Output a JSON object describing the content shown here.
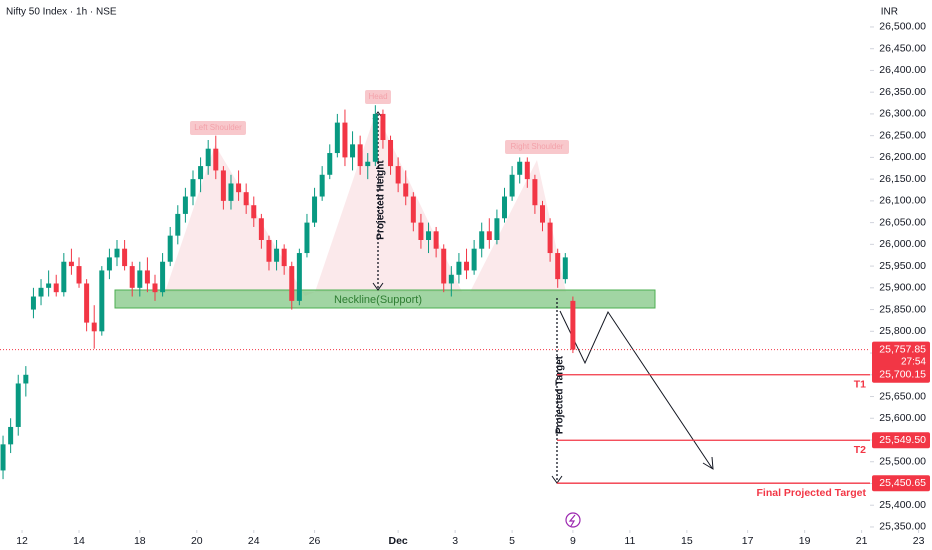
{
  "chart_data": {
    "type": "candlestick",
    "title": "Nifty 50 Index · 1h · NSE",
    "currency": "INR",
    "up_color": "#089981",
    "down_color": "#f23645",
    "candles": [
      [
        25480,
        25560,
        25460,
        25540
      ],
      [
        25540,
        25600,
        25520,
        25580
      ],
      [
        25580,
        25700,
        25560,
        25680
      ],
      [
        25680,
        25720,
        25650,
        25700
      ],
      [
        25850,
        25900,
        25830,
        25880
      ],
      [
        25880,
        25920,
        25860,
        25900
      ],
      [
        25900,
        25940,
        25880,
        25910
      ],
      [
        25910,
        25930,
        25880,
        25890
      ],
      [
        25890,
        25980,
        25880,
        25960
      ],
      [
        25960,
        25990,
        25930,
        25950
      ],
      [
        25950,
        25970,
        25900,
        25910
      ],
      [
        25910,
        25920,
        25800,
        25820
      ],
      [
        25820,
        25860,
        25760,
        25800
      ],
      [
        25800,
        25950,
        25790,
        25940
      ],
      [
        25940,
        25990,
        25920,
        25970
      ],
      [
        25970,
        26010,
        25950,
        25990
      ],
      [
        25990,
        26010,
        25940,
        25950
      ],
      [
        25950,
        25960,
        25880,
        25900
      ],
      [
        25900,
        25960,
        25880,
        25940
      ],
      [
        25940,
        25970,
        25890,
        25910
      ],
      [
        25910,
        25930,
        25870,
        25890
      ],
      [
        25890,
        25980,
        25880,
        25960
      ],
      [
        25960,
        26040,
        25950,
        26020
      ],
      [
        26020,
        26090,
        26000,
        26070
      ],
      [
        26070,
        26130,
        26050,
        26110
      ],
      [
        26110,
        26170,
        26090,
        26150
      ],
      [
        26150,
        26200,
        26120,
        26180
      ],
      [
        26180,
        26240,
        26160,
        26220
      ],
      [
        26220,
        26250,
        26150,
        26170
      ],
      [
        26170,
        26180,
        26080,
        26100
      ],
      [
        26100,
        26160,
        26080,
        26140
      ],
      [
        26140,
        26170,
        26100,
        26120
      ],
      [
        26120,
        26140,
        26070,
        26090
      ],
      [
        26090,
        26110,
        26040,
        26060
      ],
      [
        26060,
        26070,
        25990,
        26010
      ],
      [
        26010,
        26020,
        25940,
        25960
      ],
      [
        25960,
        26010,
        25940,
        25990
      ],
      [
        25990,
        26000,
        25930,
        25950
      ],
      [
        25950,
        25960,
        25850,
        25870
      ],
      [
        25870,
        25990,
        25860,
        25980
      ],
      [
        25980,
        26070,
        25970,
        26050
      ],
      [
        26050,
        26130,
        26040,
        26110
      ],
      [
        26110,
        26180,
        26100,
        26160
      ],
      [
        26160,
        26230,
        26150,
        26210
      ],
      [
        26210,
        26300,
        26200,
        26280
      ],
      [
        26280,
        26310,
        26180,
        26200
      ],
      [
        26200,
        26260,
        26170,
        26230
      ],
      [
        26230,
        26250,
        26160,
        26180
      ],
      [
        26180,
        26210,
        26150,
        26190
      ],
      [
        26190,
        26320,
        26180,
        26300
      ],
      [
        26300,
        26310,
        26220,
        26240
      ],
      [
        26240,
        26250,
        26160,
        26180
      ],
      [
        26180,
        26200,
        26120,
        26140
      ],
      [
        26140,
        26170,
        26090,
        26110
      ],
      [
        26110,
        26120,
        26030,
        26050
      ],
      [
        26050,
        26070,
        25990,
        26010
      ],
      [
        26010,
        26050,
        25980,
        26030
      ],
      [
        26030,
        26040,
        25970,
        25990
      ],
      [
        25990,
        26000,
        25890,
        25910
      ],
      [
        25910,
        25950,
        25880,
        25930
      ],
      [
        25930,
        25980,
        25910,
        25960
      ],
      [
        25960,
        25990,
        25920,
        25940
      ],
      [
        25940,
        26010,
        25930,
        25990
      ],
      [
        25990,
        26050,
        25970,
        26030
      ],
      [
        26030,
        26060,
        25990,
        26010
      ],
      [
        26010,
        26080,
        26000,
        26060
      ],
      [
        26060,
        26130,
        26050,
        26110
      ],
      [
        26110,
        26180,
        26100,
        26160
      ],
      [
        26160,
        26200,
        26140,
        26190
      ],
      [
        26190,
        26200,
        26130,
        26150
      ],
      [
        26150,
        26160,
        26070,
        26090
      ],
      [
        26090,
        26100,
        26030,
        26050
      ],
      [
        26050,
        26060,
        25960,
        25980
      ],
      [
        25980,
        25990,
        25900,
        25920
      ],
      [
        25920,
        25980,
        25910,
        25970
      ],
      [
        25870,
        25880,
        25750,
        25757.85
      ]
    ],
    "xlim": [
      -0.4,
      122
    ],
    "xticks": [
      {
        "value": 2.5,
        "label": "12"
      },
      {
        "value": 10,
        "label": "14"
      },
      {
        "value": 18,
        "label": "18"
      },
      {
        "value": 25.5,
        "label": "20"
      },
      {
        "value": 33,
        "label": "24"
      },
      {
        "value": 41,
        "label": "26"
      },
      {
        "value": 52,
        "label": "Dec"
      },
      {
        "value": 59.5,
        "label": "3"
      },
      {
        "value": 67,
        "label": "5"
      },
      {
        "value": 75,
        "label": "9"
      },
      {
        "value": 82.5,
        "label": "11"
      },
      {
        "value": 90,
        "label": "15"
      },
      {
        "value": 98,
        "label": "17"
      },
      {
        "value": 105.5,
        "label": "19"
      },
      {
        "value": 113,
        "label": "21"
      },
      {
        "value": 120.5,
        "label": "23"
      }
    ],
    "ylim": [
      25297,
      26562
    ],
    "yticks": [
      {
        "value": 25350,
        "label": "25,350.00"
      },
      {
        "value": 25400,
        "label": "25,400.00"
      },
      {
        "value": 25450,
        "label": "25,450.00"
      },
      {
        "value": 25500,
        "label": "25,500.00"
      },
      {
        "value": 25550,
        "label": "25,550.00"
      },
      {
        "value": 25600,
        "label": "25,600.00"
      },
      {
        "value": 25650,
        "label": "25,650.00"
      },
      {
        "value": 25700,
        "label": "25,700.00"
      },
      {
        "value": 25750,
        "label": "25,750.00"
      },
      {
        "value": 25800,
        "label": "25,800.00"
      },
      {
        "value": 25850,
        "label": "25,850.00"
      },
      {
        "value": 25900,
        "label": "25,900.00"
      },
      {
        "value": 25950,
        "label": "25,950.00"
      },
      {
        "value": 26000,
        "label": "26,000.00"
      },
      {
        "value": 26050,
        "label": "26,050.00"
      },
      {
        "value": 26100,
        "label": "26,100.00"
      },
      {
        "value": 26150,
        "label": "26,150.00"
      },
      {
        "value": 26200,
        "label": "26,200.00"
      },
      {
        "value": 26250,
        "label": "26,250.00"
      },
      {
        "value": 26300,
        "label": "26,300.00"
      },
      {
        "value": 26350,
        "label": "26,350.00"
      },
      {
        "value": 26400,
        "label": "26,400.00"
      },
      {
        "value": 26450,
        "label": "26,450.00"
      },
      {
        "value": 26500,
        "label": "26,500.00"
      }
    ],
    "current_price": {
      "value": 25757.85,
      "label": "25,757.85",
      "countdown": "27:54"
    },
    "levels": [
      {
        "name": "T1",
        "value": 25700.15,
        "label": "25,700.15"
      },
      {
        "name": "T2",
        "value": 25549.5,
        "label": "25,549.50"
      },
      {
        "name": "Final Projected Target",
        "value": 25450.65,
        "label": "25,450.65"
      }
    ],
    "neckline": {
      "label": "Neckline(Support)"
    },
    "projected_height": {
      "label": "Projected Height"
    },
    "projected_target": {
      "label": "Projected Target"
    },
    "pattern_labels": [
      "Left Shoulder",
      "Head",
      "Right Shoulder"
    ]
  }
}
